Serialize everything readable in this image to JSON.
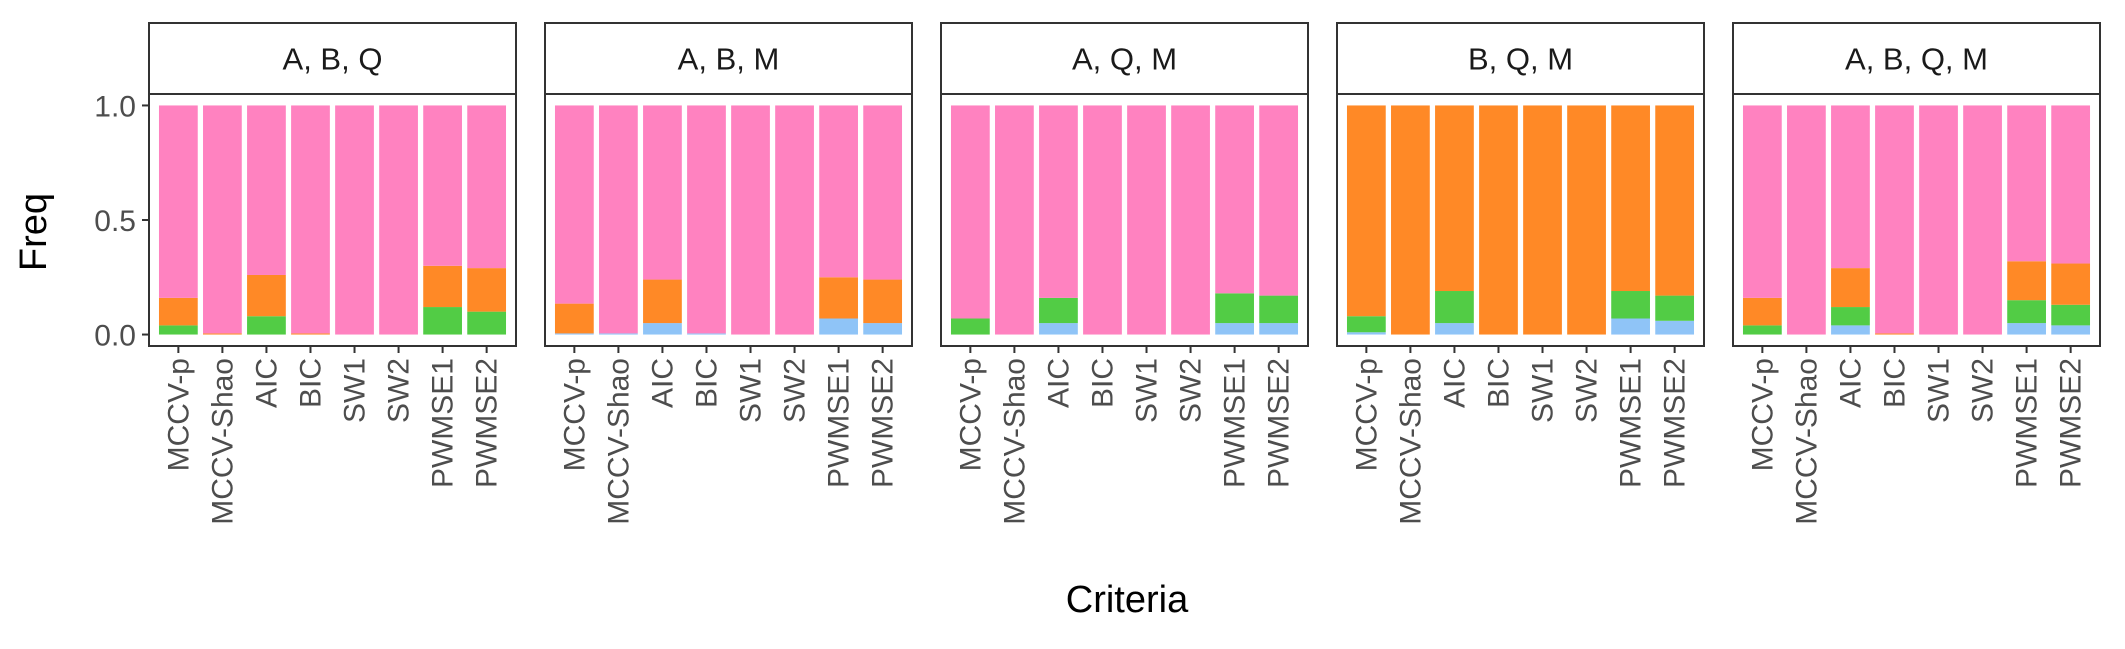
{
  "chart_data": {
    "type": "bar",
    "stacked": true,
    "ylabel": "Freq",
    "xlabel": "Criteria",
    "ylim": [
      -0.05,
      1.05
    ],
    "yticks": [
      {
        "value": 0.0,
        "label": "0.0"
      },
      {
        "value": 0.5,
        "label": "0.5"
      },
      {
        "value": 1.0,
        "label": "1.0"
      }
    ],
    "categories": [
      "MCCV-p",
      "MCCV-Shao",
      "AIC",
      "BIC",
      "SW1",
      "SW2",
      "PWMSE1",
      "PWMSE2"
    ],
    "series_colors": [
      "#8FC4F7",
      "#52CC45",
      "#FF8926",
      "#FF82C0"
    ],
    "panels": [
      {
        "title": "A, B, Q",
        "stacks": [
          [
            0.0,
            0.04,
            0.12,
            0.84
          ],
          [
            0.0,
            0.0,
            0.005,
            0.995
          ],
          [
            0.0,
            0.08,
            0.18,
            0.74
          ],
          [
            0.0,
            0.0,
            0.005,
            0.995
          ],
          [
            0.0,
            0.0,
            0.0,
            1.0
          ],
          [
            0.0,
            0.0,
            0.0,
            1.0
          ],
          [
            0.0,
            0.12,
            0.18,
            0.7
          ],
          [
            0.0,
            0.1,
            0.19,
            0.71
          ]
        ]
      },
      {
        "title": "A, B, M",
        "stacks": [
          [
            0.005,
            0.0,
            0.13,
            0.865
          ],
          [
            0.005,
            0.0,
            0.0,
            0.995
          ],
          [
            0.05,
            0.0,
            0.19,
            0.76
          ],
          [
            0.005,
            0.0,
            0.0,
            0.995
          ],
          [
            0.0,
            0.0,
            0.0,
            1.0
          ],
          [
            0.0,
            0.0,
            0.0,
            1.0
          ],
          [
            0.07,
            0.0,
            0.18,
            0.75
          ],
          [
            0.05,
            0.0,
            0.19,
            0.76
          ]
        ]
      },
      {
        "title": "A, Q, M",
        "stacks": [
          [
            0.0,
            0.07,
            0.0,
            0.93
          ],
          [
            0.0,
            0.0,
            0.0,
            1.0
          ],
          [
            0.05,
            0.11,
            0.0,
            0.84
          ],
          [
            0.0,
            0.0,
            0.0,
            1.0
          ],
          [
            0.0,
            0.0,
            0.0,
            1.0
          ],
          [
            0.0,
            0.0,
            0.0,
            1.0
          ],
          [
            0.05,
            0.13,
            0.0,
            0.82
          ],
          [
            0.05,
            0.12,
            0.0,
            0.83
          ]
        ]
      },
      {
        "title": "B, Q, M",
        "stacks": [
          [
            0.01,
            0.07,
            0.92,
            0.0
          ],
          [
            0.0,
            0.0,
            1.0,
            0.0
          ],
          [
            0.05,
            0.14,
            0.81,
            0.0
          ],
          [
            0.0,
            0.0,
            1.0,
            0.0
          ],
          [
            0.0,
            0.0,
            1.0,
            0.0
          ],
          [
            0.0,
            0.0,
            1.0,
            0.0
          ],
          [
            0.07,
            0.12,
            0.81,
            0.0
          ],
          [
            0.06,
            0.11,
            0.83,
            0.0
          ]
        ]
      },
      {
        "title": "A, B, Q, M",
        "stacks": [
          [
            0.0,
            0.04,
            0.12,
            0.84
          ],
          [
            0.0,
            0.0,
            0.0,
            1.0
          ],
          [
            0.04,
            0.08,
            0.17,
            0.71
          ],
          [
            0.0,
            0.0,
            0.005,
            0.995
          ],
          [
            0.0,
            0.0,
            0.0,
            1.0
          ],
          [
            0.0,
            0.0,
            0.0,
            1.0
          ],
          [
            0.05,
            0.1,
            0.17,
            0.68
          ],
          [
            0.04,
            0.09,
            0.18,
            0.69
          ]
        ]
      }
    ]
  }
}
